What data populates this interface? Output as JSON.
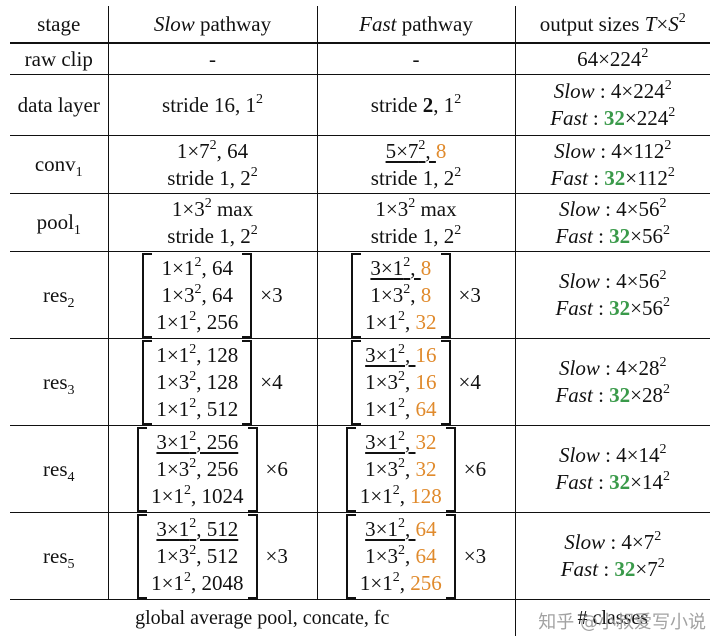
{
  "header": {
    "stage": "stage",
    "slow": [
      "Slow",
      " pathway"
    ],
    "fast": [
      "Fast",
      " pathway"
    ],
    "output": "output sizes ",
    "output_T": "T",
    "output_x": "×",
    "output_S": "S",
    "output_sup": "2"
  },
  "raw_clip": {
    "label": "raw clip",
    "slow": "-",
    "fast": "-",
    "out": "64×224",
    "out_sup": "2"
  },
  "data_layer": {
    "label": "data layer",
    "slow": "stride 16, 1",
    "slow_sup": "2",
    "fast_a": "stride ",
    "fast_b": "2",
    "fast_c": ", 1",
    "fast_sup": "2",
    "out_slow_label": "Slow",
    "out_slow_val": " : 4×224",
    "out_sup": "2",
    "out_fast_label": "Fast",
    "out_fast_sep": " : ",
    "out_fast_num": "32",
    "out_fast_val": "×224"
  },
  "conv1": {
    "label": "conv",
    "label_sub": "1",
    "slow_l1": "1×7",
    "slow_l1_sup": "2",
    "slow_l1_b": ", 64",
    "slow_l2": "stride 1, 2",
    "slow_l2_sup": "2",
    "fast_l1": "5×7",
    "fast_l1_sup": "2",
    "fast_l1_b": ", ",
    "fast_l1_c": "8",
    "fast_l2": "stride 1, 2",
    "fast_l2_sup": "2",
    "out_slow": " : 4×112",
    "out_fast_num": "32",
    "out_fast": "×112"
  },
  "pool1": {
    "label": "pool",
    "label_sub": "1",
    "slow_l1": "1×3",
    "slow_l1_sup": "2",
    "slow_l1_b": " max",
    "slow_l2": "stride 1, 2",
    "slow_l2_sup": "2",
    "fast_l1": "1×3",
    "fast_l1_sup": "2",
    "fast_l1_b": " max",
    "fast_l2": "stride 1, 2",
    "fast_l2_sup": "2",
    "out_slow": " : 4×56",
    "out_fast_num": "32",
    "out_fast": "×56"
  },
  "res": [
    {
      "label": "res",
      "sub": "2",
      "slow": [
        [
          "1×1",
          ", 64"
        ],
        [
          "1×3",
          ", 64"
        ],
        [
          "1×1",
          ", 256"
        ]
      ],
      "slow_ul": [
        false,
        false,
        false
      ],
      "slow_times": "×3",
      "fast": [
        [
          "3×1",
          "8"
        ],
        [
          "1×3",
          "8"
        ],
        [
          "1×1",
          "32"
        ]
      ],
      "fast_ul": [
        true,
        false,
        false
      ],
      "fast_times": "×3",
      "out_slow": " : 4×56",
      "out_fast_num": "32",
      "out_fast": "×56"
    },
    {
      "label": "res",
      "sub": "3",
      "slow": [
        [
          "1×1",
          ", 128"
        ],
        [
          "1×3",
          ", 128"
        ],
        [
          "1×1",
          ", 512"
        ]
      ],
      "slow_ul": [
        false,
        false,
        false
      ],
      "slow_times": "×4",
      "fast": [
        [
          "3×1",
          "16"
        ],
        [
          "1×3",
          "16"
        ],
        [
          "1×1",
          "64"
        ]
      ],
      "fast_ul": [
        true,
        false,
        false
      ],
      "fast_times": "×4",
      "out_slow": " : 4×28",
      "out_fast_num": "32",
      "out_fast": "×28"
    },
    {
      "label": "res",
      "sub": "4",
      "slow": [
        [
          "3×1",
          ", 256"
        ],
        [
          "1×3",
          ", 256"
        ],
        [
          "1×1",
          ", 1024"
        ]
      ],
      "slow_ul": [
        true,
        false,
        false
      ],
      "slow_times": "×6",
      "fast": [
        [
          "3×1",
          "32"
        ],
        [
          "1×3",
          "32"
        ],
        [
          "1×1",
          "128"
        ]
      ],
      "fast_ul": [
        true,
        false,
        false
      ],
      "fast_times": "×6",
      "out_slow": " : 4×14",
      "out_fast_num": "32",
      "out_fast": "×14"
    },
    {
      "label": "res",
      "sub": "5",
      "slow": [
        [
          "3×1",
          ", 512"
        ],
        [
          "1×3",
          ", 512"
        ],
        [
          "1×1",
          ", 2048"
        ]
      ],
      "slow_ul": [
        true,
        false,
        false
      ],
      "slow_times": "×3",
      "fast": [
        [
          "3×1",
          "64"
        ],
        [
          "1×3",
          "64"
        ],
        [
          "1×1",
          "256"
        ]
      ],
      "fast_ul": [
        true,
        false,
        false
      ],
      "fast_times": "×3",
      "out_slow": " : 4×7",
      "out_fast_num": "32",
      "out_fast": "×7"
    }
  ],
  "sup2": "2",
  "slow_word": "Slow",
  "fast_word": "Fast",
  "footer": {
    "left": "global average pool, concate, fc",
    "right": "# classes"
  },
  "watermark": "知乎 @小叔爱写小说",
  "colors": {
    "orange": "#e08a2c",
    "green": "#3a9a4a"
  }
}
